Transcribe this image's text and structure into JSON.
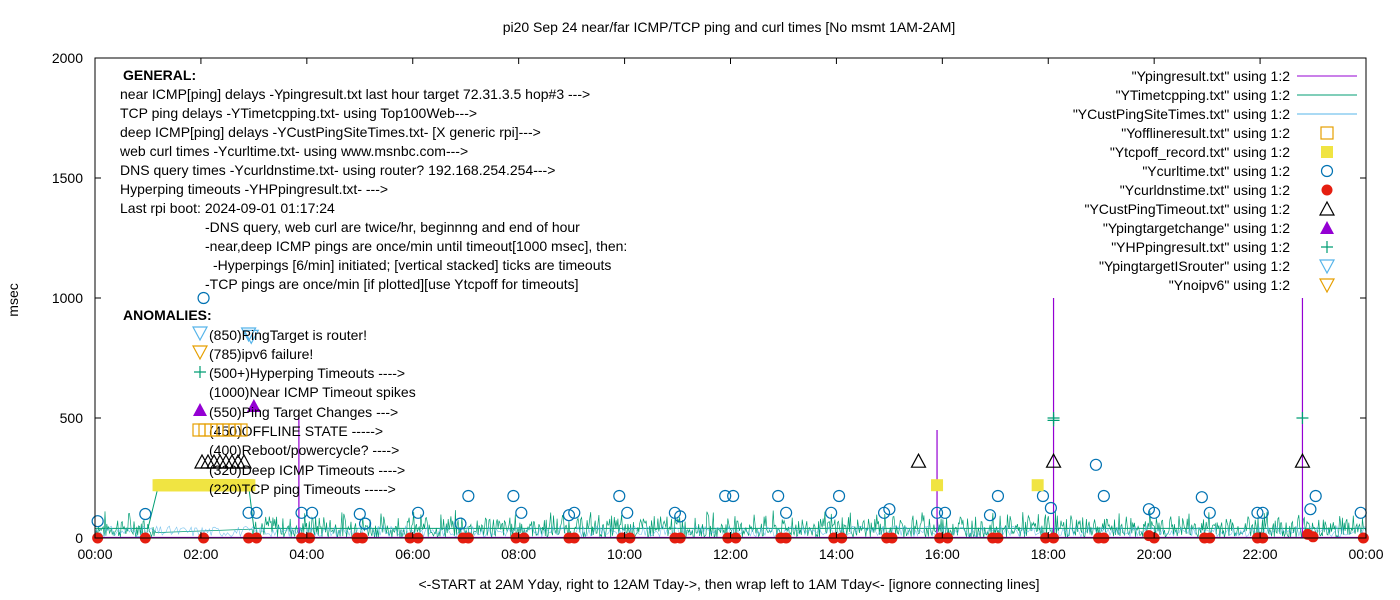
{
  "chart_data": {
    "type": "line",
    "title": "pi20 Sep 24  near/far ICMP/TCP ping and curl times [No msmt 1AM-2AM]",
    "xlabel": "<-START at 2AM Yday, right to 12AM Tday->, then wrap left to 1AM Tday<- [ignore connecting lines]",
    "ylabel": "msec",
    "xlim": [
      0,
      24
    ],
    "ylim": [
      0,
      2000
    ],
    "x_ticks": [
      "00:00",
      "02:00",
      "04:00",
      "06:00",
      "08:00",
      "10:00",
      "12:00",
      "14:00",
      "16:00",
      "18:00",
      "20:00",
      "22:00",
      "00:00"
    ],
    "y_ticks": [
      "0",
      "500",
      "1000",
      "1500",
      "2000"
    ],
    "grid": false,
    "legend_position": "top-right",
    "legend": [
      {
        "label": "\"Ypingresult.txt\" using 1:2",
        "marker": "line",
        "color": "#9400d3"
      },
      {
        "label": "\"YTimetcpping.txt\" using 1:2",
        "marker": "line",
        "color": "#009e73"
      },
      {
        "label": "\"YCustPingSiteTimes.txt\" using 1:2",
        "marker": "line",
        "color": "#56b4e9"
      },
      {
        "label": "\"Yofflineresult.txt\" using 1:2",
        "marker": "open-square",
        "color": "#e69f00"
      },
      {
        "label": "\"Ytcpoff_record.txt\" using 1:2",
        "marker": "filled-square",
        "color": "#f0e442"
      },
      {
        "label": "\"Ycurltime.txt\" using 1:2",
        "marker": "open-circle",
        "color": "#0072b2"
      },
      {
        "label": "\"Ycurldnstime.txt\" using 1:2",
        "marker": "filled-circle",
        "color": "#e51e10"
      },
      {
        "label": "\"YCustPingTimeout.txt\" using 1:2",
        "marker": "open-triangle",
        "color": "#000000"
      },
      {
        "label": "\"Ypingtargetchange\" using 1:2",
        "marker": "filled-triangle",
        "color": "#9400d3"
      },
      {
        "label": "\"YHPpingresult.txt\" using 1:2",
        "marker": "plus",
        "color": "#009e73"
      },
      {
        "label": "\"YpingtargetISrouter\" using 1:2",
        "marker": "open-triangle-down",
        "color": "#56b4e9"
      },
      {
        "label": "\"Ynoipv6\" using 1:2",
        "marker": "open-triangle-down",
        "color": "#e69f00"
      }
    ],
    "general_notes": [
      "GENERAL:",
      "near ICMP[ping] delays -Ypingresult.txt last hour target 72.31.3.5 hop#3 --->",
      "TCP ping delays -YTimetcpping.txt- using Top100Web--->",
      "deep ICMP[ping] delays -YCustPingSiteTimes.txt- [X generic rpi]--->",
      "web curl times -Ycurltime.txt- using www.msnbc.com--->",
      "DNS query times -Ycurldnstime.txt- using router? 192.168.254.254--->",
      "Hyperping timeouts -YHPpingresult.txt- --->",
      "Last rpi boot: 2024-09-01 01:17:24",
      "-DNS query, web curl are twice/hr, beginnng and end of hour",
      "-near,deep ICMP pings are once/min until timeout[1000 msec], then:",
      "-Hyperpings [6/min] initiated; [vertical stacked] ticks are timeouts",
      "-TCP pings are once/min [if plotted][use Ytcpoff for timeouts]"
    ],
    "anomaly_notes": [
      "ANOMALIES:",
      "(850)PingTarget is router!",
      "(785)ipv6 failure!",
      "(500+)Hyperping Timeouts ---->",
      "(1000)Near ICMP Timeout spikes",
      "(550)Ping Target Changes --->",
      "(450)OFFLINE STATE ----->",
      "(400)Reboot/powercycle? ---->",
      "(320)Deep ICMP Timeouts ---->",
      "(220)TCP ping Timeouts ----->"
    ],
    "series": [
      {
        "name": "\"Ycurltime.txt\" using 1:2",
        "x": [
          0.05,
          0.95,
          2.05,
          2.9,
          3.05,
          3.9,
          4.1,
          5.0,
          5.1,
          6.1,
          6.9,
          7.05,
          7.9,
          8.05,
          8.95,
          9.05,
          9.9,
          10.05,
          10.95,
          11.05,
          11.9,
          12.05,
          12.9,
          13.05,
          13.9,
          14.05,
          14.9,
          15.0,
          15.9,
          16.05,
          16.9,
          17.05,
          17.9,
          18.05,
          18.9,
          19.05,
          19.9,
          20.0,
          20.9,
          21.05,
          21.95,
          22.05,
          22.95,
          23.05,
          23.9
        ],
        "y": [
          70,
          100,
          1000,
          105,
          105,
          105,
          105,
          100,
          60,
          105,
          60,
          175,
          175,
          105,
          95,
          105,
          175,
          105,
          105,
          90,
          175,
          175,
          175,
          105,
          105,
          175,
          105,
          120,
          105,
          105,
          95,
          175,
          175,
          125,
          305,
          175,
          120,
          105,
          170,
          105,
          105,
          105,
          120,
          175,
          105
        ]
      },
      {
        "name": "\"Ycurldnstime.txt\" using 1:2",
        "x": [
          0.05,
          0.95,
          2.05,
          2.9,
          3.05,
          3.9,
          4.05,
          4.95,
          5.05,
          5.95,
          6.1,
          6.95,
          7.05,
          7.95,
          8.1,
          8.95,
          9.05,
          9.95,
          10.1,
          10.95,
          11.05,
          11.95,
          12.1,
          12.95,
          13.05,
          13.95,
          14.1,
          14.95,
          15.05,
          15.95,
          16.1,
          16.95,
          17.05,
          17.95,
          18.1,
          18.95,
          19.05,
          19.9,
          20.0,
          20.95,
          21.05,
          21.95,
          22.05,
          22.9,
          23.0,
          23.95
        ],
        "y": [
          0,
          0,
          0,
          0,
          0,
          0,
          0,
          0,
          0,
          0,
          0,
          0,
          0,
          0,
          0,
          0,
          0,
          0,
          0,
          0,
          0,
          0,
          0,
          0,
          0,
          0,
          0,
          0,
          0,
          0,
          0,
          0,
          0,
          0,
          0,
          0,
          0,
          10,
          0,
          0,
          0,
          0,
          0,
          15,
          5,
          0
        ]
      },
      {
        "name": "\"YCustPingTimeout.txt\" using 1:2",
        "x": [
          15.55,
          18.1,
          22.8
        ],
        "y": [
          320,
          320,
          320
        ]
      },
      {
        "name": "\"Ytcpoff_record.txt\" using 1:2",
        "x": [
          15.9,
          17.8
        ],
        "y": [
          220,
          220
        ]
      },
      {
        "name": "\"YHPpingresult.txt\" using 1:2",
        "x": [
          18.1,
          18.1,
          22.8
        ],
        "y": [
          500,
          490,
          500
        ]
      },
      {
        "name": "\"YpingtargetISrouter\" using 1:2",
        "x": [
          2.9,
          2.95
        ],
        "y": [
          850,
          840
        ]
      },
      {
        "name": "\"Ypingtargetchange\" using 1:2",
        "x": [
          3.0
        ],
        "y": [
          550
        ]
      },
      {
        "name": "\"Ypingresult.txt\" using 1:2",
        "spikes_x": [
          3.85,
          15.9,
          18.1,
          22.8
        ],
        "spikes_y": [
          520,
          450,
          1000,
          1000
        ],
        "x": [
          0.0,
          1.0,
          2.0,
          2.9,
          3.0,
          4.0,
          6.0,
          8.0,
          10.0,
          12.0,
          14.0,
          16.0,
          18.0,
          20.0,
          22.0,
          24.0
        ],
        "y": [
          2,
          2,
          2,
          2,
          2,
          2,
          2,
          2,
          2,
          2,
          2,
          2,
          2,
          2,
          2,
          2
        ]
      },
      {
        "name": "\"YTimetcpping.txt\" using 1:2",
        "x": [
          0.0,
          1.0,
          1.2,
          1.5,
          2.0,
          2.5,
          2.9,
          3.0,
          4.0,
          6.0,
          8.0,
          10.0,
          12.0,
          14.0,
          16.0,
          18.0,
          20.0,
          22.0,
          24.0
        ],
        "y": [
          40,
          40,
          220,
          220,
          220,
          220,
          220,
          40,
          40,
          40,
          40,
          40,
          40,
          40,
          40,
          40,
          40,
          40,
          40
        ],
        "noise_max": 120
      }
    ]
  }
}
